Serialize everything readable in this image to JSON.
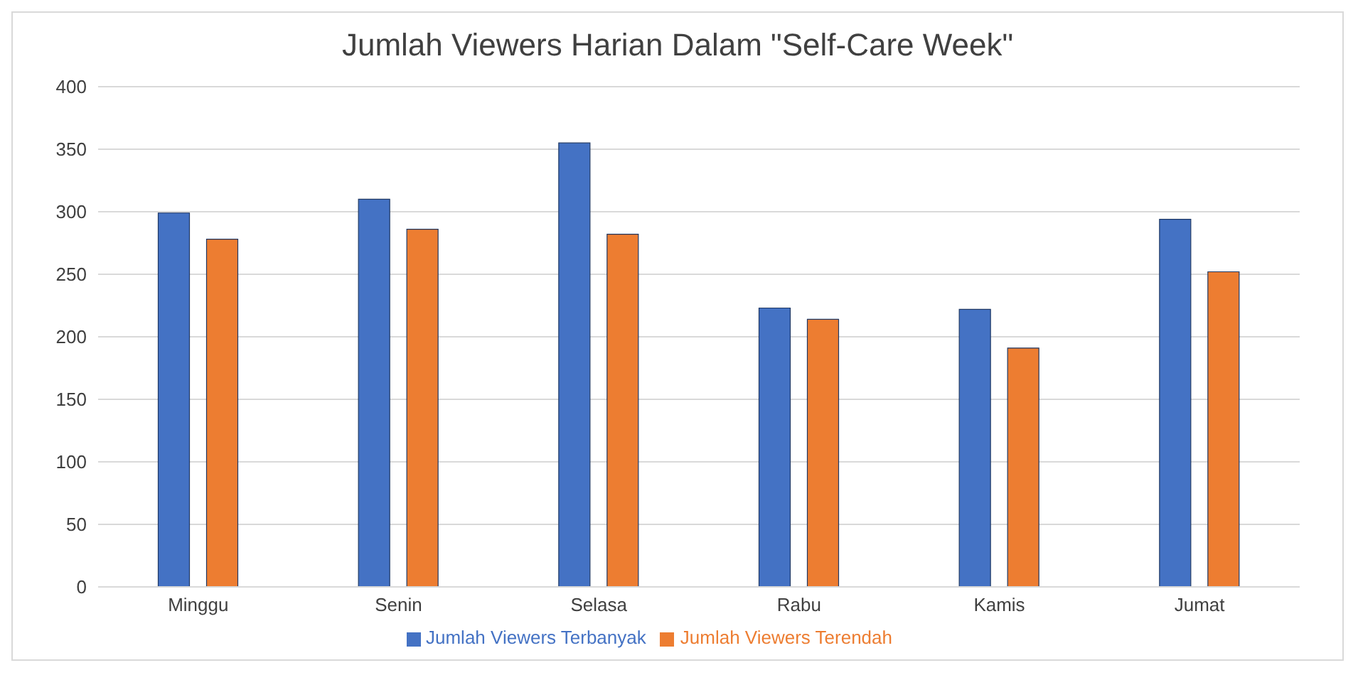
{
  "chart_data": {
    "type": "bar",
    "title": "Jumlah Viewers Harian Dalam \"Self-Care Week\"",
    "categories": [
      "Minggu",
      "Senin",
      "Selasa",
      "Rabu",
      "Kamis",
      "Jumat"
    ],
    "series": [
      {
        "name": "Jumlah Viewers Terbanyak",
        "color": "#4472c4",
        "values": [
          299,
          310,
          355,
          223,
          222,
          294
        ]
      },
      {
        "name": "Jumlah Viewers Terendah",
        "color": "#ed7d31",
        "values": [
          278,
          286,
          282,
          214,
          191,
          252
        ]
      }
    ],
    "ylim": [
      0,
      400
    ],
    "yticks": [
      0,
      50,
      100,
      150,
      200,
      250,
      300,
      350,
      400
    ],
    "grid": "y",
    "legend": "bottom"
  }
}
